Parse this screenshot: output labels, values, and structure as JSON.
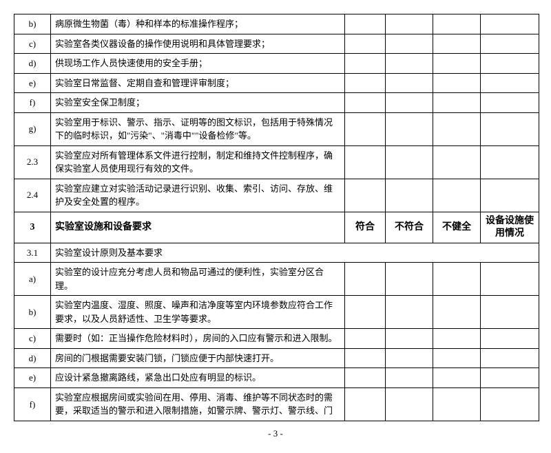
{
  "rows": [
    {
      "id": "b)",
      "desc": "病原微生物菌（毒）种和样本的标准操作程序；",
      "c1": "",
      "c2": "",
      "c3": "",
      "c4": ""
    },
    {
      "id": "c)",
      "desc": "实验室各类仪器设备的操作使用说明和具体管理要求；",
      "c1": "",
      "c2": "",
      "c3": "",
      "c4": ""
    },
    {
      "id": "d)",
      "desc": "供现场工作人员快速使用的安全手册；",
      "c1": "",
      "c2": "",
      "c3": "",
      "c4": ""
    },
    {
      "id": "e)",
      "desc": "实验室日常监督、定期自查和管理评审制度；",
      "c1": "",
      "c2": "",
      "c3": "",
      "c4": ""
    },
    {
      "id": "f)",
      "desc": "实验室安全保卫制度；",
      "c1": "",
      "c2": "",
      "c3": "",
      "c4": ""
    },
    {
      "id": "g)",
      "desc": "实验室用于标识、警示、指示、证明等的图文标识，包括用于特殊情况下的临时标识，如\"污染\"、\"消毒中\"\"设备检修\"等。",
      "c1": "",
      "c2": "",
      "c3": "",
      "c4": ""
    },
    {
      "id": "2.3",
      "desc": "实验室应对所有管理体系文件进行控制，制定和维持文件控制程序，确保实验室人员使用现行有效的文件。",
      "c1": "",
      "c2": "",
      "c3": "",
      "c4": ""
    },
    {
      "id": "2.4",
      "desc": "实验室应建立对实验活动记录进行识别、收集、索引、访问、存放、维护及安全处置的程序。",
      "c1": "",
      "c2": "",
      "c3": "",
      "c4": ""
    },
    {
      "id": "3",
      "desc": "实验室设施和设备要求",
      "header": true,
      "c1": "符合",
      "c2": "不符合",
      "c3": "不健全",
      "c4": "设备设施使用情况"
    },
    {
      "id": "3.1",
      "desc": "实验室设计原则及基本要求",
      "span": true
    },
    {
      "id": "a)",
      "desc": "实验室的设计应充分考虑人员和物品可通过的便利性，实验室分区合理。",
      "c1": "",
      "c2": "",
      "c3": "",
      "c4": ""
    },
    {
      "id": "b)",
      "desc": "实验室内温度、湿度、照度、噪声和洁净度等室内环境参数应符合工作要求，以及人员舒适性、卫生学等要求。",
      "c1": "",
      "c2": "",
      "c3": "",
      "c4": ""
    },
    {
      "id": "c)",
      "desc": "需要时（如：正当操作危险材料时），房间的入口应有警示和进入限制。",
      "c1": "",
      "c2": "",
      "c3": "",
      "c4": ""
    },
    {
      "id": "d)",
      "desc": "房间的门根据需要安装门锁，门锁应便于内部快速打开。",
      "c1": "",
      "c2": "",
      "c3": "",
      "c4": ""
    },
    {
      "id": "e)",
      "desc": "应设计紧急撤离路线，紧急出口处应有明显的标识。",
      "c1": "",
      "c2": "",
      "c3": "",
      "c4": ""
    },
    {
      "id": "f)",
      "desc": "实验室应根据房间或实验间在用、停用、消毒、维护等不同状态时的需要，采取适当的警示和进入限制措施，如警示牌、警示灯、警示线、门",
      "c1": "",
      "c2": "",
      "c3": "",
      "c4": ""
    }
  ],
  "page_number": "- 3 -"
}
